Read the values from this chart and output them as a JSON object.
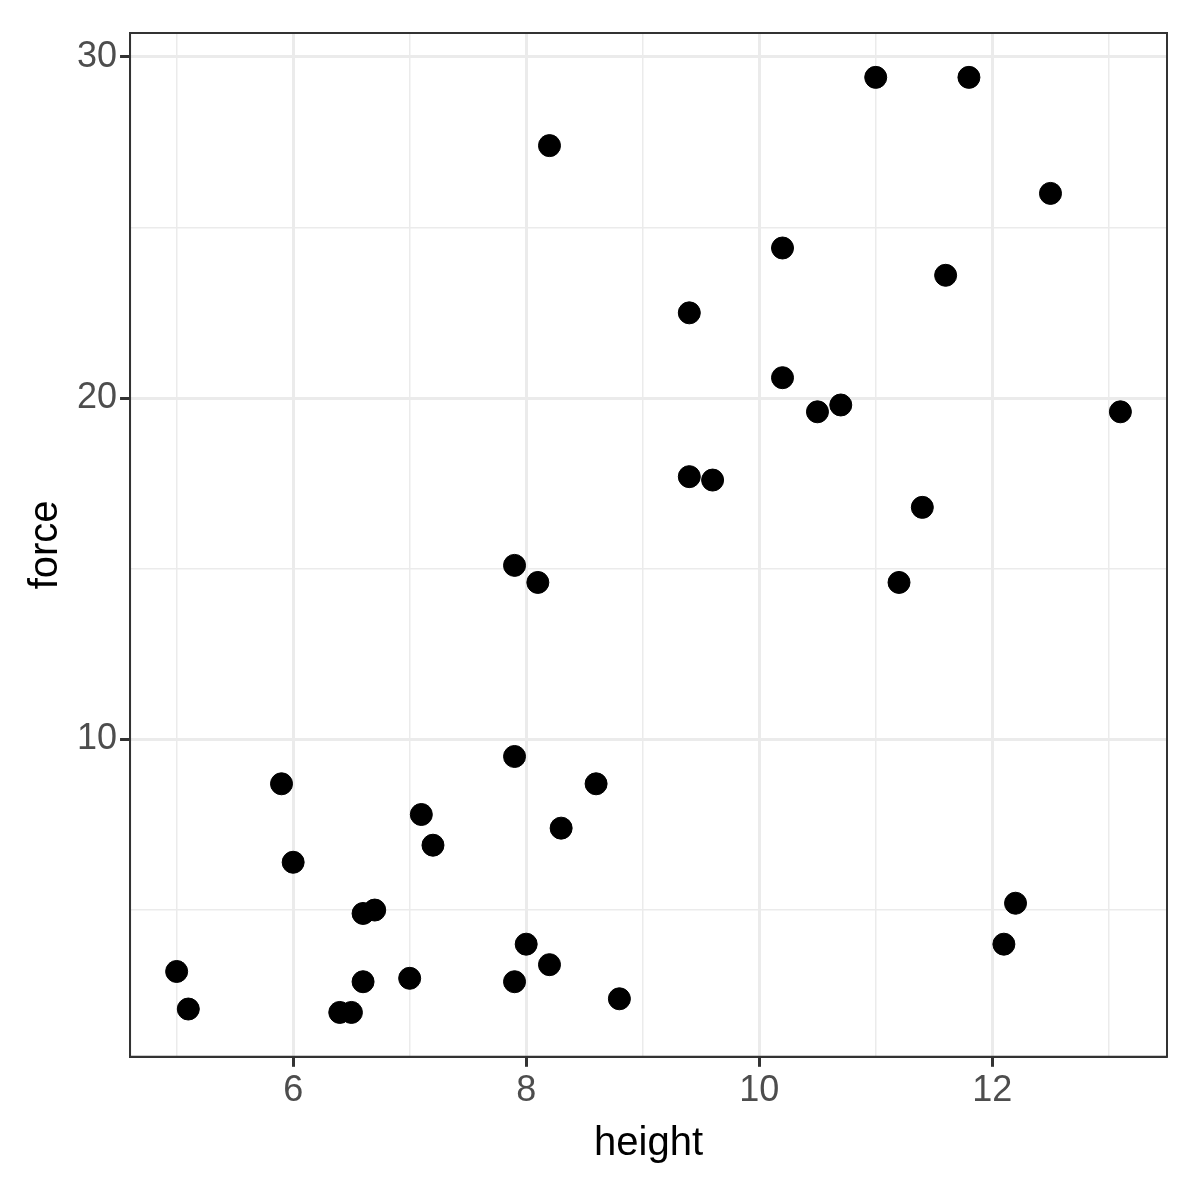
{
  "chart_data": {
    "type": "scatter",
    "xlabel": "height",
    "ylabel": "force",
    "x": [
      11.0,
      11.8,
      8.2,
      12.5,
      10.2,
      11.6,
      9.4,
      10.2,
      10.5,
      10.7,
      13.1,
      9.4,
      9.6,
      11.4,
      7.9,
      8.1,
      11.2,
      7.9,
      5.9,
      8.6,
      7.1,
      8.3,
      7.2,
      6.0,
      12.2,
      6.6,
      6.7,
      8.0,
      12.1,
      5.0,
      8.2,
      7.0,
      6.6,
      7.9,
      8.8,
      5.1,
      6.4,
      6.5
    ],
    "values": [
      29.4,
      29.4,
      27.4,
      26.0,
      24.4,
      23.6,
      22.5,
      20.6,
      19.6,
      19.8,
      19.6,
      17.7,
      17.6,
      16.8,
      15.1,
      14.6,
      14.6,
      9.5,
      8.7,
      8.7,
      7.8,
      7.4,
      6.9,
      6.4,
      5.2,
      4.9,
      5.0,
      4.0,
      4.0,
      3.2,
      3.4,
      3.0,
      2.9,
      2.9,
      2.4,
      2.1,
      2.0,
      2.0
    ],
    "color": "#000000",
    "marker": "circle",
    "xlim": [
      4.6,
      13.5
    ],
    "ylim": [
      0.7,
      30.7
    ],
    "xticks": [
      {
        "value": 5,
        "label": null
      },
      6,
      {
        "value": 7,
        "label": null
      },
      8,
      {
        "value": 9,
        "label": null
      },
      10,
      {
        "value": 11,
        "label": null
      },
      12,
      {
        "value": 13,
        "label": null
      }
    ],
    "yticks": [
      {
        "value": 5,
        "label": null
      },
      10,
      {
        "value": 15,
        "label": null
      },
      20,
      {
        "value": 25,
        "label": null
      },
      30
    ],
    "grid": true,
    "legend": false
  }
}
